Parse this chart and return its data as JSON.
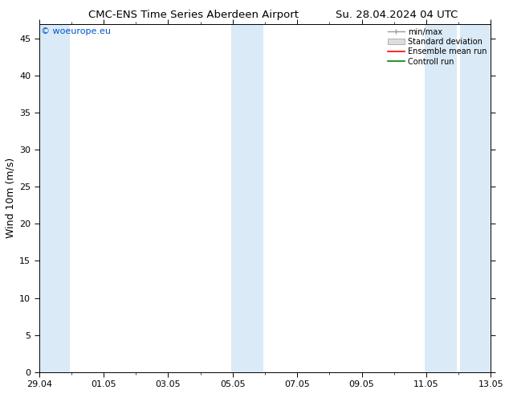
{
  "title_left": "CMC-ENS Time Series Aberdeen Airport",
  "title_right": "Su. 28.04.2024 04 UTC",
  "ylabel": "Wind 10m (m/s)",
  "watermark": "© woeurope.eu",
  "ylim": [
    0,
    47
  ],
  "yticks": [
    0,
    5,
    10,
    15,
    20,
    25,
    30,
    35,
    40,
    45
  ],
  "x_start": 0,
  "x_end": 14,
  "xtick_labels": [
    "29.04",
    "01.05",
    "03.05",
    "05.05",
    "07.05",
    "09.05",
    "11.05",
    "13.05"
  ],
  "xtick_positions": [
    0,
    2,
    4,
    6,
    8,
    10,
    12,
    14
  ],
  "shaded_bands": [
    [
      -0.05,
      0.95
    ],
    [
      5.95,
      6.95
    ],
    [
      11.95,
      12.95
    ],
    [
      13.05,
      14.05
    ]
  ],
  "shaded_color": "#daeaf7",
  "background_color": "#ffffff",
  "plot_bg_color": "#ffffff",
  "legend_labels": [
    "min/max",
    "Standard deviation",
    "Ensemble mean run",
    "Controll run"
  ],
  "legend_colors_line": [
    "#999999",
    "#cccccc",
    "#ff0000",
    "#008000"
  ],
  "watermark_color": "#0055cc",
  "title_fontsize": 9.5,
  "tick_fontsize": 8,
  "ylabel_fontsize": 9
}
